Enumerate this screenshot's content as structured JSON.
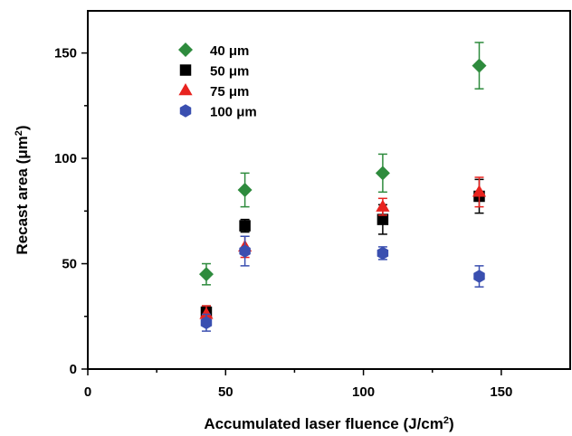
{
  "chart_data": {
    "type": "scatter",
    "title": "",
    "xlabel": "Accumulated laser fluence (J/cm",
    "xlabel_sup": "2",
    "xlabel_end": ")",
    "ylabel": "Recast area (μm",
    "ylabel_sup": "2",
    "ylabel_end": ")",
    "xlim": [
      0,
      175
    ],
    "ylim": [
      0,
      170
    ],
    "x_ticks": [
      0,
      50,
      100,
      150
    ],
    "y_ticks": [
      0,
      50,
      100,
      150
    ],
    "x_tick_labels": [
      "0",
      "50",
      "100",
      "150"
    ],
    "y_tick_labels": [
      "0",
      "50",
      "100",
      "150"
    ],
    "grid": false,
    "legend_position": "top-left",
    "series": [
      {
        "name": "40 μm",
        "marker": "diamond",
        "color": "#2e8b3d",
        "x": [
          43,
          57,
          107,
          142
        ],
        "y": [
          45,
          85,
          93,
          144
        ],
        "err": [
          5,
          8,
          9,
          11
        ]
      },
      {
        "name": "50 μm",
        "marker": "square",
        "color": "#000000",
        "x": [
          43,
          57,
          107,
          142
        ],
        "y": [
          27,
          68,
          71,
          82
        ],
        "err": [
          3,
          3,
          7,
          8
        ]
      },
      {
        "name": "75 μm",
        "marker": "triangle",
        "color": "#e8231f",
        "x": [
          43,
          57,
          107,
          142
        ],
        "y": [
          26,
          58,
          77,
          84
        ],
        "err": [
          4,
          5,
          4,
          7
        ]
      },
      {
        "name": "100 μm",
        "marker": "hexagon",
        "color": "#3a4fb0",
        "x": [
          43,
          57,
          107,
          142
        ],
        "y": [
          22,
          56,
          55,
          44
        ],
        "err": [
          4,
          7,
          3,
          5
        ]
      }
    ]
  }
}
